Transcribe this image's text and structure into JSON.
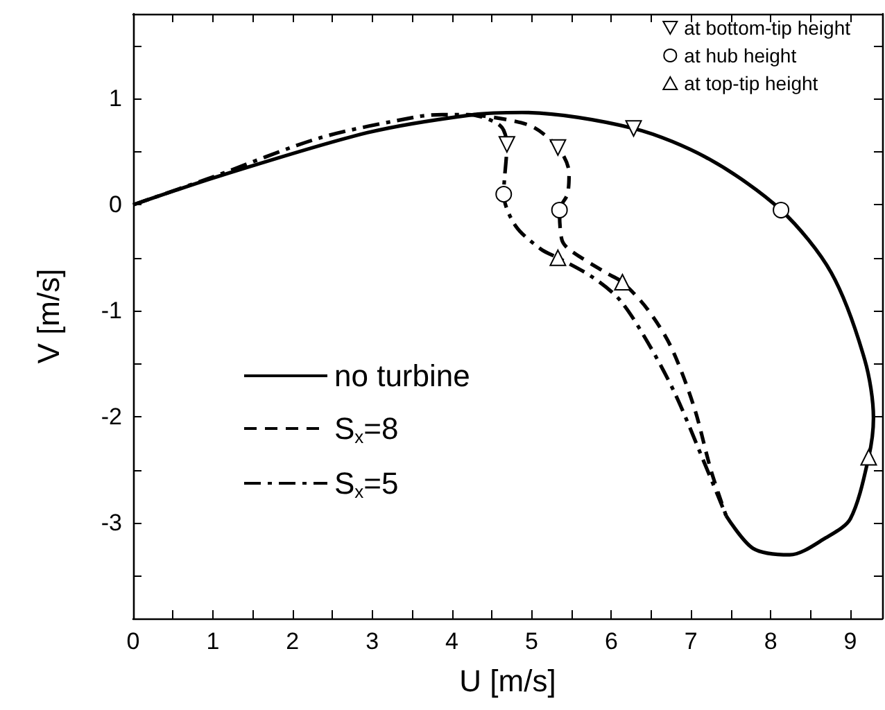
{
  "chart_data": {
    "type": "line",
    "xlabel": "U [m/s]",
    "ylabel": "V [m/s]",
    "xlim": [
      0,
      9.4
    ],
    "ylim": [
      -3.9,
      1.8
    ],
    "xticks": [
      0,
      {
        "value": 0.5,
        "label": null
      },
      1,
      {
        "value": 1.5,
        "label": null
      },
      2,
      {
        "value": 2.5,
        "label": null
      },
      3,
      {
        "value": 3.5,
        "label": null
      },
      4,
      {
        "value": 4.5,
        "label": null
      },
      5,
      {
        "value": 5.5,
        "label": null
      },
      6,
      {
        "value": 6.5,
        "label": null
      },
      7,
      {
        "value": 7.5,
        "label": null
      },
      8,
      {
        "value": 8.5,
        "label": null
      },
      9
    ],
    "yticks": [
      {
        "value": -3.5,
        "label": null
      },
      -3,
      {
        "value": -2.5,
        "label": null
      },
      -2,
      {
        "value": -1.5,
        "label": null
      },
      -1,
      {
        "value": -0.5,
        "label": null
      },
      0,
      {
        "value": 0.5,
        "label": null
      },
      1,
      {
        "value": 1.5,
        "label": null
      }
    ],
    "grid": false,
    "legend": "top right",
    "marker": "none",
    "series": [
      {
        "name": "no turbine",
        "color": "#000000",
        "line_style": "solid",
        "x": [
          0,
          1.12,
          2.94,
          4.27,
          4.88,
          6.28,
          7.23,
          8.13,
          8.76,
          9.18,
          9.29,
          9.23,
          9.0,
          8.69,
          8.24,
          7.78,
          7.44
        ],
        "values": [
          0,
          0.28,
          0.68,
          0.85,
          0.87,
          0.72,
          0.43,
          -0.05,
          -0.64,
          -1.46,
          -2.01,
          -2.38,
          -2.96,
          -3.14,
          -3.3,
          -3.24,
          -2.93
        ]
      },
      {
        "name": "S$_{x}$=8",
        "color": "#000000",
        "line_style": "dashed",
        "x": [
          4.27,
          4.97,
          5.33,
          5.47,
          5.45,
          5.35,
          5.38,
          5.47,
          5.93,
          6.14,
          6.46,
          6.75,
          7.04,
          7.25,
          7.44
        ],
        "values": [
          0.85,
          0.75,
          0.54,
          0.3,
          0.1,
          -0.05,
          -0.33,
          -0.42,
          -0.64,
          -0.73,
          -0.99,
          -1.34,
          -1.91,
          -2.5,
          -2.93
        ]
      },
      {
        "name": "S$_{x}$=5",
        "color": "#000000",
        "line_style": "dashdot",
        "x": [
          0,
          0.99,
          2.34,
          3.56,
          3.88,
          4.2,
          4.6,
          4.69,
          4.65,
          4.8,
          5.12,
          5.33,
          5.76,
          6.11,
          6.46,
          6.8,
          7.15,
          7.44
        ],
        "values": [
          0,
          0.26,
          0.63,
          0.83,
          0.85,
          0.85,
          0.75,
          0.57,
          0.1,
          -0.2,
          -0.42,
          -0.5,
          -0.68,
          -0.9,
          -1.3,
          -1.78,
          -2.4,
          -2.93
        ]
      },
      {
        "name": "at bottom-tip height",
        "type": "scatter",
        "color": "#000000",
        "marker": "triangle-down",
        "x": [
          6.28,
          5.33,
          4.69
        ],
        "values": [
          0.72,
          0.54,
          0.57
        ]
      },
      {
        "name": "at hub height",
        "type": "scatter",
        "color": "#000000",
        "marker": "circle",
        "x": [
          8.13,
          5.35,
          4.65
        ],
        "values": [
          -0.05,
          -0.05,
          0.1
        ]
      },
      {
        "name": "at top-tip height",
        "type": "scatter",
        "color": "#000000",
        "marker": "triangle",
        "x": [
          9.23,
          6.14,
          5.33
        ],
        "values": [
          -2.38,
          -0.73,
          -0.5
        ]
      }
    ]
  }
}
